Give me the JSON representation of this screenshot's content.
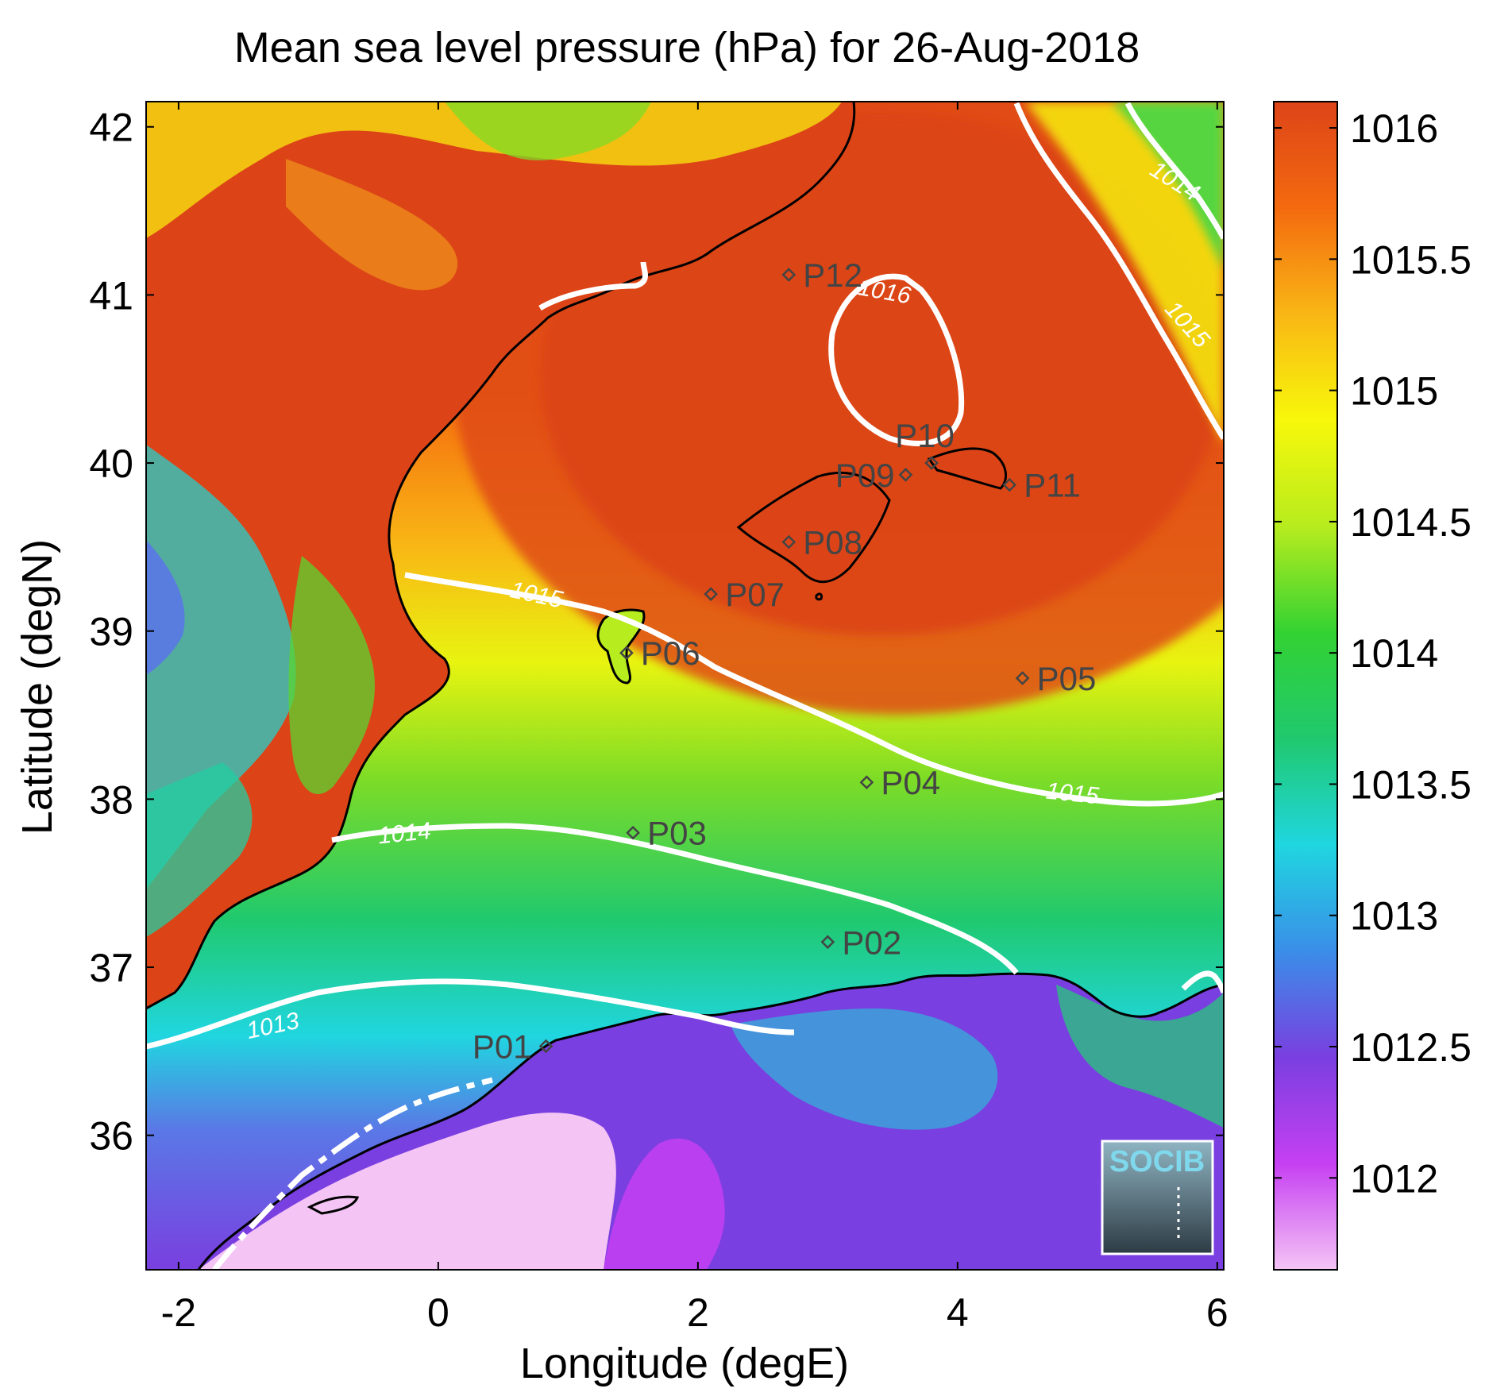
{
  "chart_data": {
    "type": "heatmap",
    "title": "Mean sea level pressure (hPa) for 26-Aug-2018",
    "xlabel": "Longitude (degE)",
    "ylabel": "Latitude (degN)",
    "xlim": [
      -2.25,
      6.05
    ],
    "ylim": [
      35.2,
      42.15
    ],
    "xticks": [
      -2,
      0,
      2,
      4,
      6
    ],
    "yticks": [
      36,
      37,
      38,
      39,
      40,
      41,
      42
    ],
    "colorbar": {
      "range": [
        1011.65,
        1016.1
      ],
      "ticks": [
        "1012",
        "1012.5",
        "1013",
        "1013.5",
        "1014",
        "1014.5",
        "1015",
        "1015.5",
        "1016"
      ],
      "colormap": [
        "#f4c4f5",
        "#c640f2",
        "#7a3fe0",
        "#3a8ee8",
        "#20d6e0",
        "#20c96e",
        "#33d233",
        "#b7ec1e",
        "#f8f80a",
        "#f9b615",
        "#f46a0f",
        "#dd4418"
      ]
    },
    "contour_labels": [
      "1013",
      "1014",
      "1014",
      "1015",
      "1015",
      "1015",
      "1016"
    ],
    "points": [
      {
        "name": "P01",
        "lon": 0.83,
        "lat": 36.53
      },
      {
        "name": "P02",
        "lon": 3.0,
        "lat": 37.15
      },
      {
        "name": "P03",
        "lon": 1.5,
        "lat": 37.8
      },
      {
        "name": "P04",
        "lon": 3.3,
        "lat": 38.1
      },
      {
        "name": "P05",
        "lon": 4.5,
        "lat": 38.72
      },
      {
        "name": "P06",
        "lon": 1.45,
        "lat": 38.87
      },
      {
        "name": "P07",
        "lon": 2.1,
        "lat": 39.22
      },
      {
        "name": "P08",
        "lon": 2.7,
        "lat": 39.53
      },
      {
        "name": "P09",
        "lon": 3.6,
        "lat": 39.93
      },
      {
        "name": "P10",
        "lon": 3.8,
        "lat": 40.0
      },
      {
        "name": "P11",
        "lon": 4.4,
        "lat": 39.87
      },
      {
        "name": "P12",
        "lon": 2.7,
        "lat": 41.12
      }
    ]
  },
  "logo": {
    "text": "SOCIB"
  }
}
